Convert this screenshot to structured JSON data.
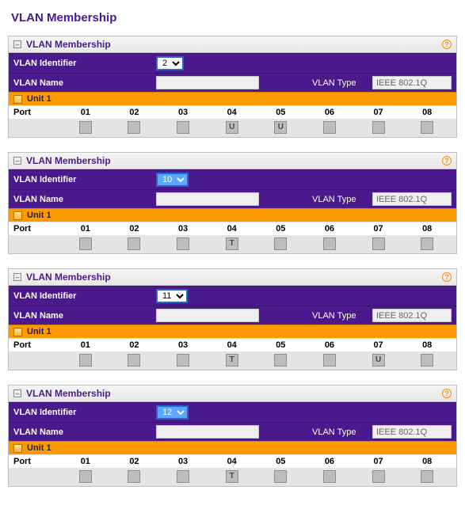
{
  "page_title": "VLAN Membership",
  "colors": {
    "purple": "#4a1a8c",
    "orange": "#fd9a00",
    "help": "#ff8c00"
  },
  "labels": {
    "panel_title": "VLAN Membership",
    "vlan_identifier": "VLAN Identifier",
    "vlan_name": "VLAN Name",
    "vlan_type": "VLAN Type",
    "unit": "Unit 1",
    "port": "Port"
  },
  "port_numbers": [
    "01",
    "02",
    "03",
    "04",
    "05",
    "06",
    "07",
    "08"
  ],
  "type_default": "IEEE 802.1Q",
  "panels": [
    {
      "id_value": "2",
      "id_highlight": false,
      "name": "",
      "ports": [
        "",
        "",
        "",
        "U",
        "U",
        "",
        "",
        ""
      ]
    },
    {
      "id_value": "10",
      "id_highlight": true,
      "name": "",
      "ports": [
        "",
        "",
        "",
        "T",
        "",
        "",
        "",
        ""
      ]
    },
    {
      "id_value": "11",
      "id_highlight": false,
      "name": "",
      "ports": [
        "",
        "",
        "",
        "T",
        "",
        "",
        "U",
        ""
      ]
    },
    {
      "id_value": "12",
      "id_highlight": true,
      "name": "",
      "ports": [
        "",
        "",
        "",
        "T",
        "",
        "",
        "",
        ""
      ]
    }
  ]
}
